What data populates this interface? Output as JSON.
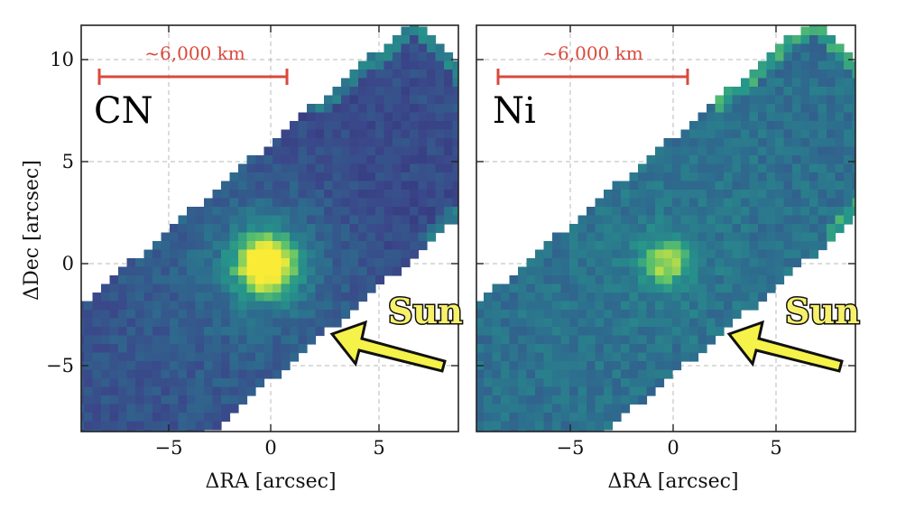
{
  "figure": {
    "ylabel": "ΔDec [arcsec]",
    "colors": {
      "scale_bar": "#d94a3d",
      "arrow_fill": "#f5f24a",
      "sun_text": "#f7f06a",
      "map_low": "#3b3c82",
      "map_mid": "#2f7f8c",
      "map_high": "#f5e83a"
    },
    "panels": [
      {
        "id": "cn",
        "species": "CN",
        "xlabel": "ΔRA [arcsec]",
        "scale_label": "~6,000 km",
        "sun_label": "Sun",
        "x_ticks": [
          "−5",
          "0",
          "5"
        ],
        "y_ticks": [
          "10",
          "5",
          "0",
          "−5"
        ],
        "coma_peak_level": 1.0
      },
      {
        "id": "ni",
        "species": "Ni",
        "xlabel": "ΔRA [arcsec]",
        "scale_label": "~6,000 km",
        "sun_label": "Sun",
        "x_ticks": [
          "−5",
          "0",
          "5"
        ],
        "y_ticks": [],
        "coma_peak_level": 0.8
      }
    ]
  }
}
